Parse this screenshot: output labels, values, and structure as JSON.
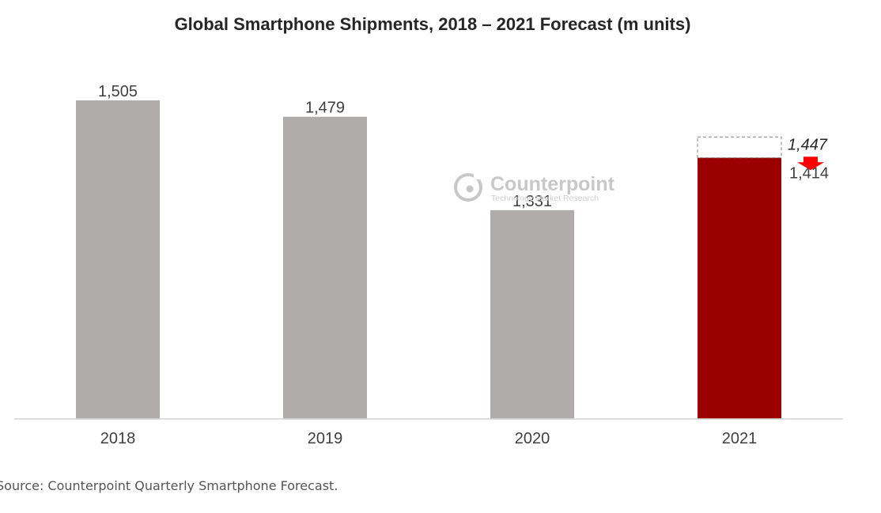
{
  "chart_data": {
    "type": "bar",
    "title": "Global Smartphone Shipments, 2018 – 2021 Forecast (m units)",
    "categories": [
      "2018",
      "2019",
      "2020",
      "2021"
    ],
    "values": [
      1505,
      1479,
      1331,
      1414
    ],
    "value_labels": [
      "1,505",
      "1,479",
      "1,331",
      "1,414"
    ],
    "previous_forecast": {
      "category": "2021",
      "value": 1447,
      "label": "1,447"
    },
    "bar_color": "#b0acab",
    "highlight_color": "#9b0000",
    "arrow_color": "#ff0000",
    "ylim": [
      1000,
      1520
    ],
    "grid": false,
    "legend": false
  },
  "watermark": {
    "brand": "Counterpoint",
    "tagline": "Technology Market Research",
    "logo_icon": "counterpoint-logo-icon"
  },
  "source": "Source: Counterpoint Quarterly Smartphone Forecast."
}
